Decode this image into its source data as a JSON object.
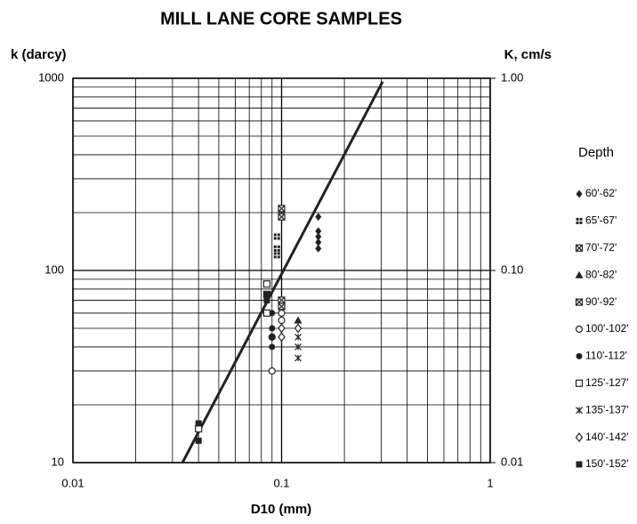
{
  "chart_data": {
    "type": "scatter",
    "title": "MILL LANE CORE SAMPLES",
    "y_label": "k (darcy)",
    "y2_label": "K, cm/s",
    "x_label": "D10 (mm)",
    "legend_title": "Depth",
    "x_log": true,
    "y_log": true,
    "grid": true,
    "legend": "right",
    "xlim": [
      0.01,
      1
    ],
    "xticks": [
      0.01,
      0.1,
      1
    ],
    "ylim": [
      10,
      1000
    ],
    "yticks": [
      10,
      100,
      1000
    ],
    "y2lim": [
      0.01,
      1
    ],
    "y2ticks": [
      {
        "value": 1,
        "label": "1.00"
      },
      {
        "value": 0.1,
        "label": "0.10"
      },
      0.01
    ],
    "trend_line": {
      "x": [
        0.0335,
        0.305
      ],
      "y": [
        10,
        960
      ],
      "color": "#222222"
    },
    "series": [
      {
        "name": "60'-62'",
        "marker": "diamond",
        "color": "#222222",
        "x": [
          0.15,
          0.15,
          0.15,
          0.15,
          0.15
        ],
        "values": [
          190,
          160,
          150,
          140,
          130
        ]
      },
      {
        "name": "65'-67'",
        "marker": "square-cross",
        "color": "#222222",
        "x": [
          0.095,
          0.095,
          0.095
        ],
        "values": [
          150,
          130,
          120
        ]
      },
      {
        "name": "70'-72'",
        "marker": "square-x",
        "color": "#222222",
        "x": [
          0.1,
          0.1
        ],
        "values": [
          210,
          190
        ]
      },
      {
        "name": "80'-82'",
        "marker": "triangle",
        "color": "#222222",
        "x": [
          0.12
        ],
        "values": [
          55
        ]
      },
      {
        "name": "90'-92'",
        "marker": "square-x",
        "color": "#222222",
        "x": [
          0.1,
          0.1
        ],
        "values": [
          70,
          65
        ]
      },
      {
        "name": "100'-102'",
        "marker": "circle-open",
        "color": "#222222",
        "x": [
          0.09,
          0.1,
          0.1,
          0.09
        ],
        "values": [
          30,
          60,
          55,
          45
        ]
      },
      {
        "name": "110'-112'",
        "marker": "circle",
        "color": "#222222",
        "x": [
          0.09,
          0.09,
          0.09,
          0.09
        ],
        "values": [
          60,
          50,
          45,
          40
        ]
      },
      {
        "name": "125'-127'",
        "marker": "square-open",
        "color": "#222222",
        "x": [
          0.085,
          0.085,
          0.085,
          0.04
        ],
        "values": [
          85,
          75,
          60,
          15
        ]
      },
      {
        "name": "135'-137'",
        "marker": "asterisk",
        "color": "#222222",
        "x": [
          0.12,
          0.12,
          0.12
        ],
        "values": [
          45,
          40,
          35
        ]
      },
      {
        "name": "140'-142'",
        "marker": "diamond-open",
        "color": "#222222",
        "x": [
          0.1,
          0.1,
          0.12
        ],
        "values": [
          50,
          45,
          50
        ]
      },
      {
        "name": "150'-152'",
        "marker": "square",
        "color": "#222222",
        "x": [
          0.04,
          0.04,
          0.085,
          0.085
        ],
        "values": [
          16,
          13,
          75,
          70
        ]
      }
    ]
  }
}
